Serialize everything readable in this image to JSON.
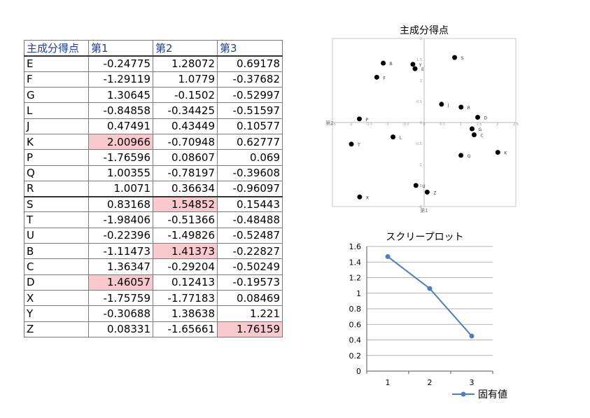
{
  "table": {
    "headers": [
      "主成分得点",
      "第1",
      "第2",
      "第3"
    ],
    "rows": [
      {
        "label": "E",
        "values": [
          "-0.24775",
          "1.28072",
          "0.69178"
        ],
        "highlight": []
      },
      {
        "label": "F",
        "values": [
          "-1.29119",
          "1.0779",
          "-0.37682"
        ],
        "highlight": []
      },
      {
        "label": "G",
        "values": [
          "1.30645",
          "-0.1502",
          "-0.52997"
        ],
        "highlight": []
      },
      {
        "label": "L",
        "values": [
          "-0.84858",
          "-0.34425",
          "-0.51597"
        ],
        "highlight": []
      },
      {
        "label": "J",
        "values": [
          "0.47491",
          "0.43449",
          "0.10577"
        ],
        "highlight": []
      },
      {
        "label": "K",
        "values": [
          "2.00966",
          "-0.70948",
          "0.62777"
        ],
        "highlight": [
          0
        ]
      },
      {
        "label": "P",
        "values": [
          "-1.76596",
          "0.08607",
          "0.069"
        ],
        "highlight": []
      },
      {
        "label": "Q",
        "values": [
          "1.00355",
          "-0.78197",
          "-0.39608"
        ],
        "highlight": []
      },
      {
        "label": "R",
        "values": [
          "1.0071",
          "0.36634",
          "-0.96097"
        ],
        "highlight": []
      },
      {
        "label": "S",
        "values": [
          "0.83168",
          "1.54852",
          "0.15443"
        ],
        "highlight": [
          1
        ]
      },
      {
        "label": "T",
        "values": [
          "-1.98406",
          "-0.51366",
          "-0.48488"
        ],
        "highlight": []
      },
      {
        "label": "U",
        "values": [
          "-0.22396",
          "-1.49826",
          "-0.52487"
        ],
        "highlight": []
      },
      {
        "label": "B",
        "values": [
          "-1.11473",
          "1.41373",
          "-0.22827"
        ],
        "highlight": [
          1
        ]
      },
      {
        "label": "C",
        "values": [
          "1.36347",
          "-0.29204",
          "-0.50249"
        ],
        "highlight": []
      },
      {
        "label": "D",
        "values": [
          "1.46057",
          "0.12413",
          "-0.19573"
        ],
        "highlight": [
          0
        ]
      },
      {
        "label": "X",
        "values": [
          "-1.75759",
          "-1.77183",
          "0.08469"
        ],
        "highlight": []
      },
      {
        "label": "Y",
        "values": [
          "-0.30688",
          "1.38638",
          "1.221"
        ],
        "highlight": []
      },
      {
        "label": "Z",
        "values": [
          "0.08331",
          "-1.65661",
          "1.76159"
        ],
        "highlight": [
          2
        ]
      }
    ],
    "highlight_color": "#f9c9cd",
    "header_color": "#1f3f9a"
  },
  "chart_data": [
    {
      "type": "scatter",
      "title": "主成分得点",
      "xlabel": "第1",
      "ylabel": "第2",
      "xlim": [
        -2.5,
        2.5
      ],
      "ylim": [
        -2,
        2
      ],
      "x_ticks": [
        "-2.5",
        "-2",
        "-1.5",
        "-1",
        "-0.5",
        "0",
        "0.5",
        "1",
        "1.5",
        "2",
        "2.5"
      ],
      "y_ticks": [
        "-2",
        "-1.5",
        "-1",
        "-0.5",
        "0",
        "0.5",
        "1",
        "1.5",
        "2"
      ],
      "points": [
        {
          "label": "E",
          "x": -0.24775,
          "y": 1.28072
        },
        {
          "label": "F",
          "x": -1.29119,
          "y": 1.0779
        },
        {
          "label": "G",
          "x": 1.30645,
          "y": -0.1502
        },
        {
          "label": "L",
          "x": -0.84858,
          "y": -0.34425
        },
        {
          "label": "J",
          "x": 0.47491,
          "y": 0.43449
        },
        {
          "label": "K",
          "x": 2.00966,
          "y": -0.70948
        },
        {
          "label": "P",
          "x": -1.76596,
          "y": 0.08607
        },
        {
          "label": "Q",
          "x": 1.00355,
          "y": -0.78197
        },
        {
          "label": "R",
          "x": 1.0071,
          "y": 0.36634
        },
        {
          "label": "S",
          "x": 0.83168,
          "y": 1.54852
        },
        {
          "label": "T",
          "x": -1.98406,
          "y": -0.51366
        },
        {
          "label": "U",
          "x": -0.22396,
          "y": -1.49826
        },
        {
          "label": "B",
          "x": -1.11473,
          "y": 1.41373
        },
        {
          "label": "C",
          "x": 1.36347,
          "y": -0.29204
        },
        {
          "label": "D",
          "x": 1.46057,
          "y": 0.12413
        },
        {
          "label": "X",
          "x": -1.75759,
          "y": -1.77183
        },
        {
          "label": "Y",
          "x": -0.30688,
          "y": 1.38638
        },
        {
          "label": "Z",
          "x": 0.08331,
          "y": -1.65661
        }
      ]
    },
    {
      "type": "line",
      "title": "スクリープロット",
      "categories": [
        "1",
        "2",
        "3"
      ],
      "series": [
        {
          "name": "固有値",
          "values": [
            1.47,
            1.06,
            0.45
          ],
          "color": "#4a7fc1"
        }
      ],
      "ylim": [
        0,
        1.6
      ],
      "y_ticks": [
        "0",
        "0.2",
        "0.4",
        "0.6",
        "0.8",
        "1",
        "1.2",
        "1.4",
        "1.6"
      ],
      "grid": true,
      "legend": "bottom-right"
    }
  ]
}
